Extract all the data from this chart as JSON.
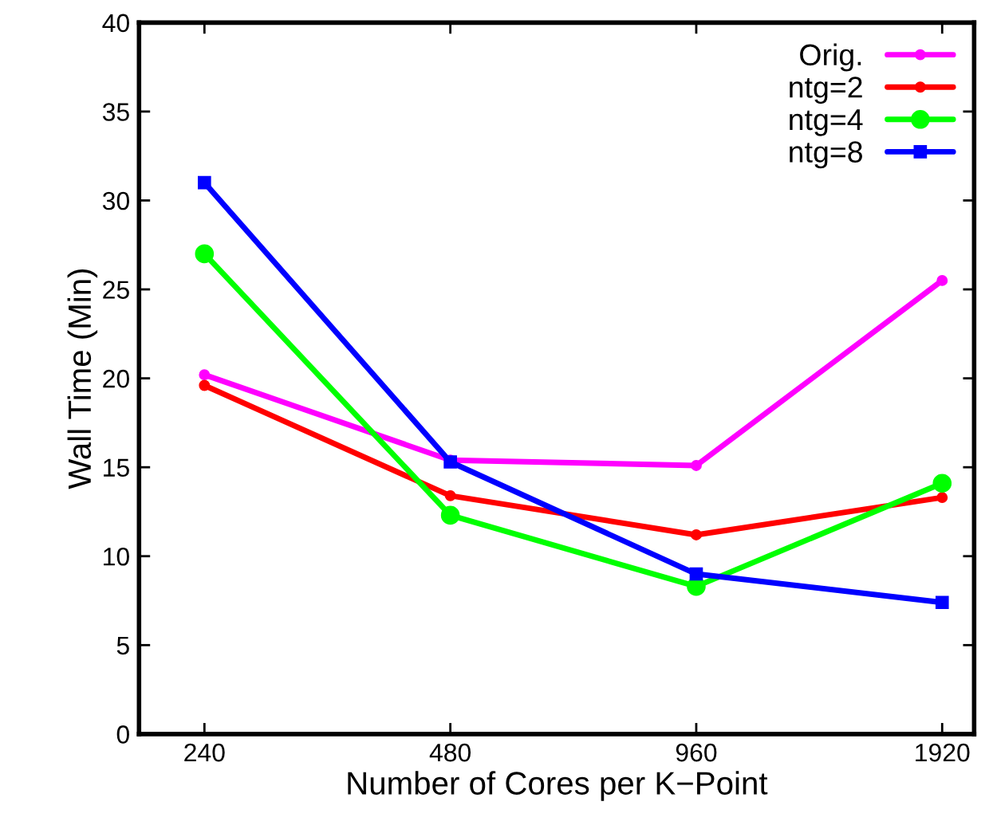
{
  "chart_data": {
    "type": "line",
    "xlabel": "Number of Cores per K−Point",
    "ylabel": "Wall Time (Min)",
    "categories": [
      "240",
      "480",
      "960",
      "1920"
    ],
    "series": [
      {
        "name": "Orig.",
        "color": "#ff00ff",
        "marker": "circle",
        "values": [
          20.2,
          15.4,
          15.1,
          25.5
        ]
      },
      {
        "name": "ntg=2",
        "color": "#ff0000",
        "marker": "circle",
        "values": [
          19.6,
          13.4,
          11.2,
          13.3
        ]
      },
      {
        "name": "ntg=4",
        "color": "#00ff00",
        "marker": "circle",
        "values": [
          27.0,
          12.3,
          8.3,
          14.1
        ]
      },
      {
        "name": "ntg=8",
        "color": "#0000ff",
        "marker": "square",
        "values": [
          31.0,
          15.3,
          9.0,
          7.4
        ]
      }
    ],
    "ylim": [
      0,
      40
    ],
    "yticks": [
      0,
      5,
      10,
      15,
      20,
      25,
      30,
      35,
      40
    ],
    "grid": false,
    "legend": "top right",
    "line_style": "solid"
  }
}
